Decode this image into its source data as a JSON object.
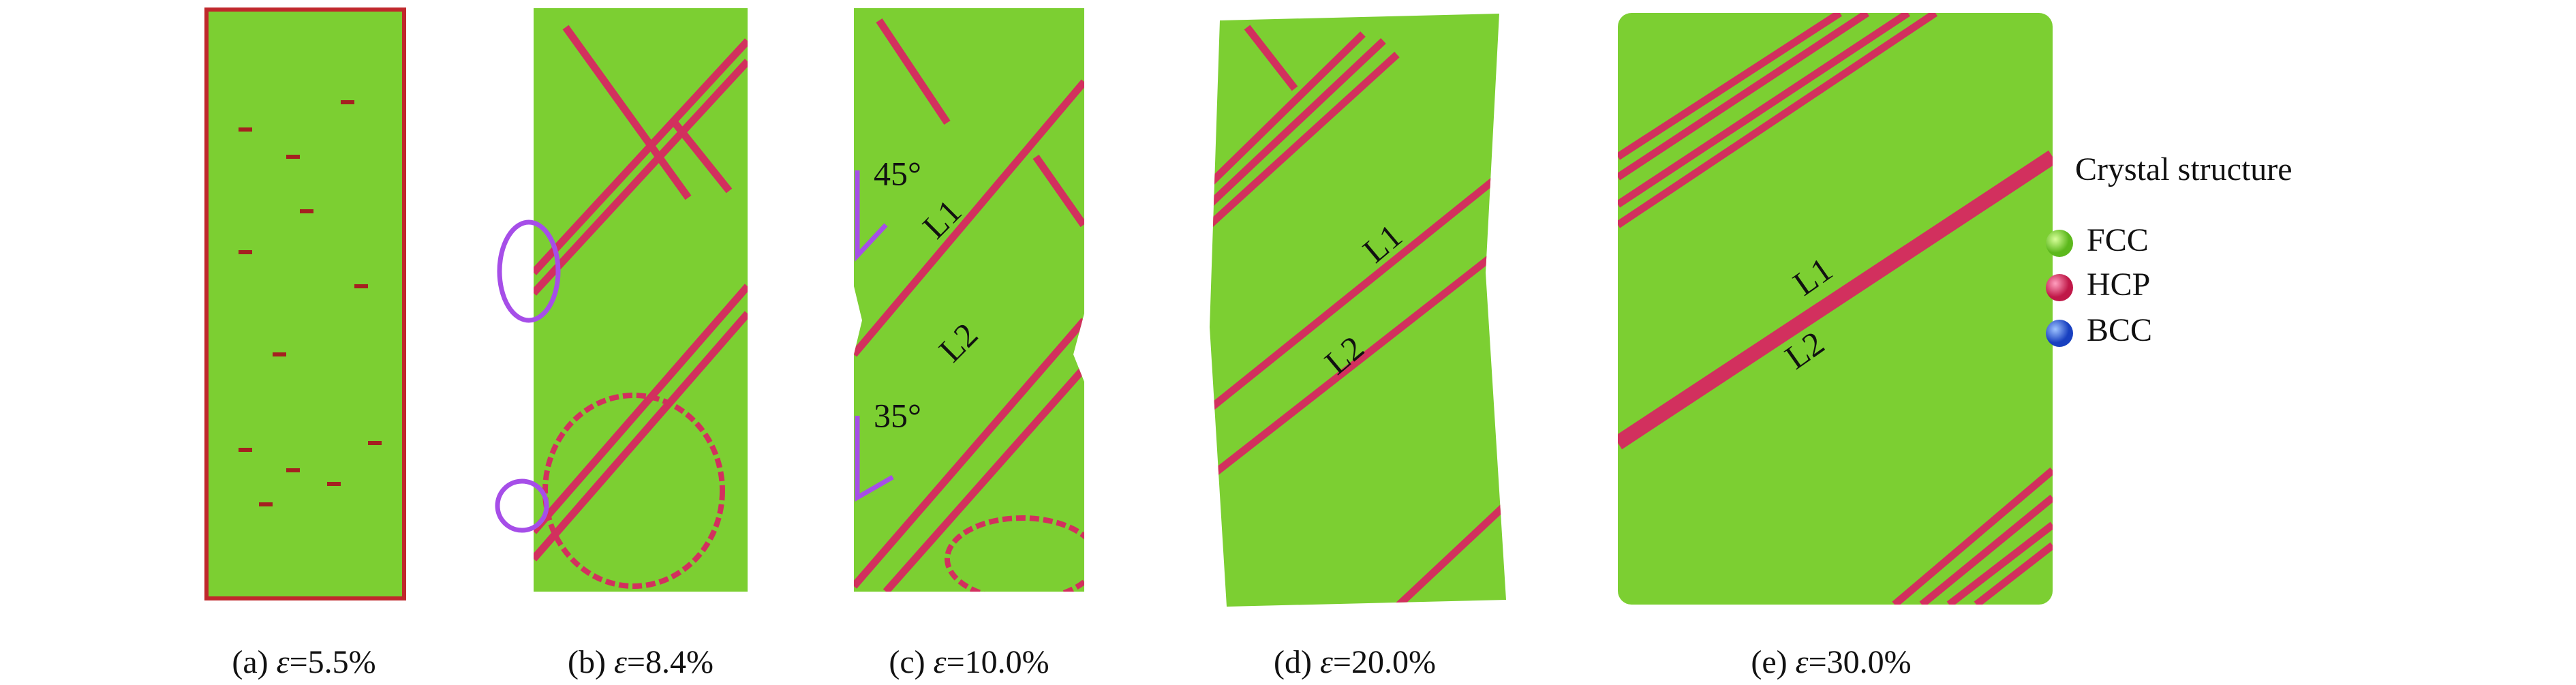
{
  "panels": [
    {
      "caption": {
        "label": "(a)",
        "symbol": "ε",
        "strain": "=5.5%"
      }
    },
    {
      "caption": {
        "label": "(b)",
        "symbol": "ε",
        "strain": "=8.4%"
      }
    },
    {
      "caption": {
        "label": "(c)",
        "symbol": "ε",
        "strain": "=10.0%"
      },
      "annotations": [
        "45°",
        "L1",
        "L2",
        "35°"
      ]
    },
    {
      "caption": {
        "label": "(d)",
        "symbol": "ε",
        "strain": "=20.0%"
      },
      "annotations": [
        "L1",
        "L2"
      ]
    },
    {
      "caption": {
        "label": "(e)",
        "symbol": "ε",
        "strain": "=30.0%"
      },
      "annotations": [
        "L1",
        "L2"
      ]
    }
  ],
  "legend": {
    "title": "Crystal structure",
    "entries": [
      "FCC",
      "HCP",
      "BCC"
    ]
  }
}
